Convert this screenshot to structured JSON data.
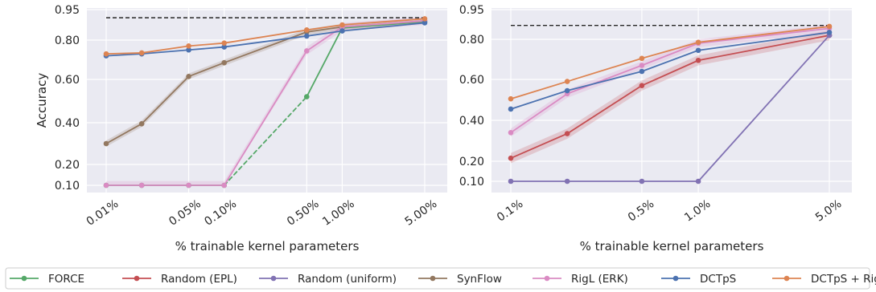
{
  "colors": {
    "plot_bg": "#eaeaf2",
    "grid": "#ffffff",
    "reference_line": "#262626",
    "FORCE": "#55a868",
    "Random (EPL)": "#c44e52",
    "Random (uniform)": "#8172b3",
    "SynFlow": "#937860",
    "RigL (ERK)": "#da8bc3",
    "DCTpS": "#4c72b0",
    "DCTpS + RigL": "#dd8452"
  },
  "legend": {
    "placement": "bottom, below both panels, single row",
    "entries": [
      "FORCE",
      "Random (EPL)",
      "Random (uniform)",
      "SynFlow",
      "RigL (ERK)",
      "DCTpS",
      "DCTpS + RigL"
    ]
  },
  "chart_data": [
    {
      "type": "line",
      "panel": "left",
      "xlabel": "% trainable kernel parameters",
      "ylabel": "Accuracy",
      "x_scale": "log",
      "y_scale": "custom (non-linear)",
      "xlim": [
        0.01,
        5.0
      ],
      "ylim": [
        0.1,
        0.95
      ],
      "grid": true,
      "x_ticks": [
        0.01,
        0.05,
        0.1,
        0.5,
        1.0,
        5.0
      ],
      "x_tick_labels": [
        "0.01%",
        "0.05%",
        "0.10%",
        "0.50%",
        "1.00%",
        "5.00%"
      ],
      "y_ticks": [
        0.1,
        0.2,
        0.4,
        0.6,
        0.8,
        0.95
      ],
      "y_tick_labels": [
        "0.10",
        "0.20",
        "0.40",
        "0.60",
        "0.80",
        "0.95"
      ],
      "reference_line": {
        "y": 0.91,
        "x_range": [
          0.01,
          5.0
        ],
        "style": "dashed"
      },
      "series": [
        {
          "name": "FORCE",
          "x": [
            0.01,
            0.02,
            0.05,
            0.1,
            0.5,
            1.0,
            5.0
          ],
          "y": [
            0.1,
            0.1,
            0.1,
            0.1,
            0.52,
            0.86,
            0.89
          ],
          "dashed_segments": [
            [
              3,
              4
            ]
          ]
        },
        {
          "name": "SynFlow",
          "x": [
            0.01,
            0.02,
            0.05,
            0.1,
            0.5,
            1.0,
            5.0
          ],
          "y": [
            0.3,
            0.395,
            0.615,
            0.685,
            0.84,
            0.865,
            0.895
          ],
          "band": 0.015
        },
        {
          "name": "RigL (ERK)",
          "x": [
            0.01,
            0.02,
            0.05,
            0.1,
            0.5,
            1.0,
            5.0
          ],
          "y": [
            0.1,
            0.1,
            0.1,
            0.1,
            0.745,
            0.865,
            0.895
          ],
          "band": 0.02
        },
        {
          "name": "DCTpS",
          "x": [
            0.01,
            0.02,
            0.05,
            0.1,
            0.5,
            1.0,
            5.0
          ],
          "y": [
            0.72,
            0.73,
            0.75,
            0.765,
            0.82,
            0.845,
            0.885
          ]
        },
        {
          "name": "DCTpS + RigL",
          "x": [
            0.01,
            0.02,
            0.05,
            0.1,
            0.5,
            1.0,
            5.0
          ],
          "y": [
            0.73,
            0.735,
            0.77,
            0.785,
            0.85,
            0.875,
            0.905
          ]
        }
      ]
    },
    {
      "type": "line",
      "panel": "right",
      "xlabel": "% trainable kernel parameters",
      "ylabel": "",
      "x_scale": "log",
      "y_scale": "custom (non-linear)",
      "xlim": [
        0.1,
        5.0
      ],
      "ylim": [
        0.1,
        0.95
      ],
      "grid": true,
      "x_ticks": [
        0.1,
        0.5,
        1.0,
        5.0
      ],
      "x_tick_labels": [
        "0.1%",
        "0.5%",
        "1.0%",
        "5.0%"
      ],
      "y_ticks": [
        0.1,
        0.2,
        0.4,
        0.6,
        0.8,
        0.95
      ],
      "y_tick_labels": [
        "0.10",
        "0.20",
        "0.40",
        "0.60",
        "0.80",
        "0.95"
      ],
      "reference_line": {
        "y": 0.87,
        "x_range": [
          0.1,
          5.0
        ],
        "style": "dashed"
      },
      "series": [
        {
          "name": "Random (EPL)",
          "x": [
            0.1,
            0.2,
            0.5,
            1.0,
            5.0
          ],
          "y": [
            0.215,
            0.335,
            0.57,
            0.695,
            0.82
          ],
          "band": 0.025
        },
        {
          "name": "Random (uniform)",
          "x": [
            0.1,
            0.2,
            0.5,
            1.0,
            5.0
          ],
          "y": [
            0.1,
            0.1,
            0.1,
            0.1,
            0.82
          ]
        },
        {
          "name": "RigL (ERK)",
          "x": [
            0.1,
            0.2,
            0.5,
            1.0,
            5.0
          ],
          "y": [
            0.34,
            0.53,
            0.67,
            0.78,
            0.855
          ],
          "band": 0.02
        },
        {
          "name": "DCTpS",
          "x": [
            0.1,
            0.2,
            0.5,
            1.0,
            5.0
          ],
          "y": [
            0.455,
            0.545,
            0.64,
            0.745,
            0.835
          ]
        },
        {
          "name": "DCTpS + RigL",
          "x": [
            0.1,
            0.2,
            0.5,
            1.0,
            5.0
          ],
          "y": [
            0.505,
            0.59,
            0.705,
            0.785,
            0.865
          ]
        }
      ]
    }
  ]
}
